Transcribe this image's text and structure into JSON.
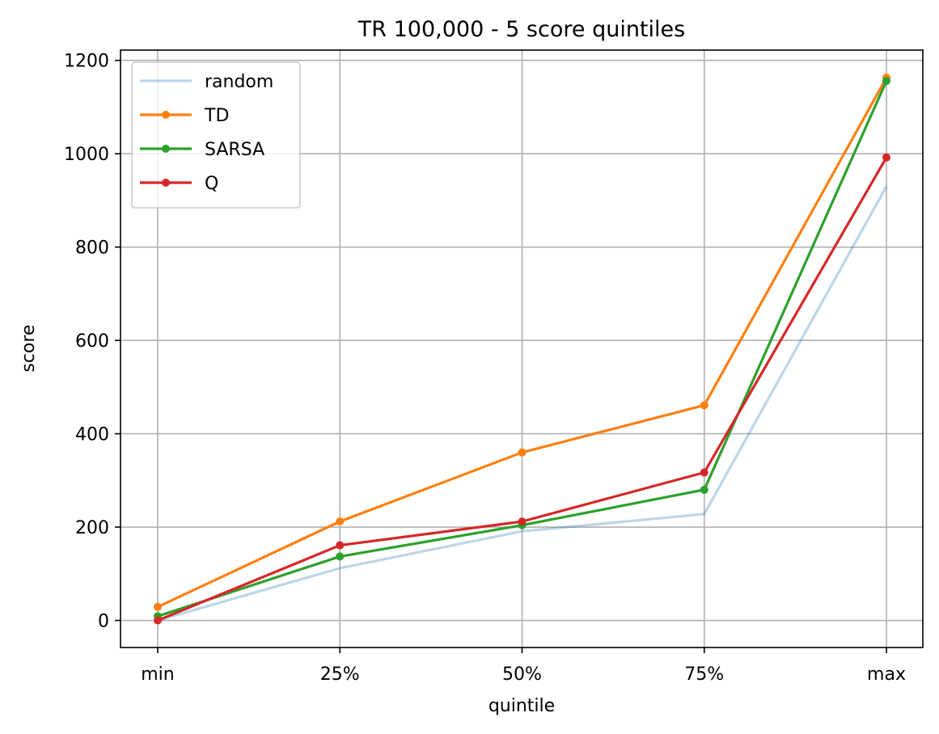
{
  "chart_data": {
    "type": "line",
    "title": "TR 100,000 - 5 score quintiles",
    "xlabel": "quintile",
    "ylabel": "score",
    "categories": [
      "min",
      "25%",
      "50%",
      "75%",
      "max"
    ],
    "ylim": [
      -58,
      1222
    ],
    "yticks": [
      0,
      200,
      400,
      600,
      800,
      1000,
      1200
    ],
    "grid": true,
    "legend_position": "top-left",
    "series": [
      {
        "name": "random",
        "color": "#1f77b4",
        "opacity": 0.3,
        "markers": false,
        "values": [
          0,
          112,
          191,
          228,
          930
        ]
      },
      {
        "name": "TD",
        "color": "#ff7f0e",
        "opacity": 1,
        "markers": true,
        "values": [
          29,
          212,
          360,
          461,
          1163
        ]
      },
      {
        "name": "SARSA",
        "color": "#2ca02c",
        "opacity": 1,
        "markers": true,
        "values": [
          9,
          137,
          204,
          280,
          1156
        ]
      },
      {
        "name": "Q",
        "color": "#d62728",
        "opacity": 1,
        "markers": true,
        "values": [
          0,
          161,
          212,
          317,
          992
        ]
      }
    ]
  }
}
